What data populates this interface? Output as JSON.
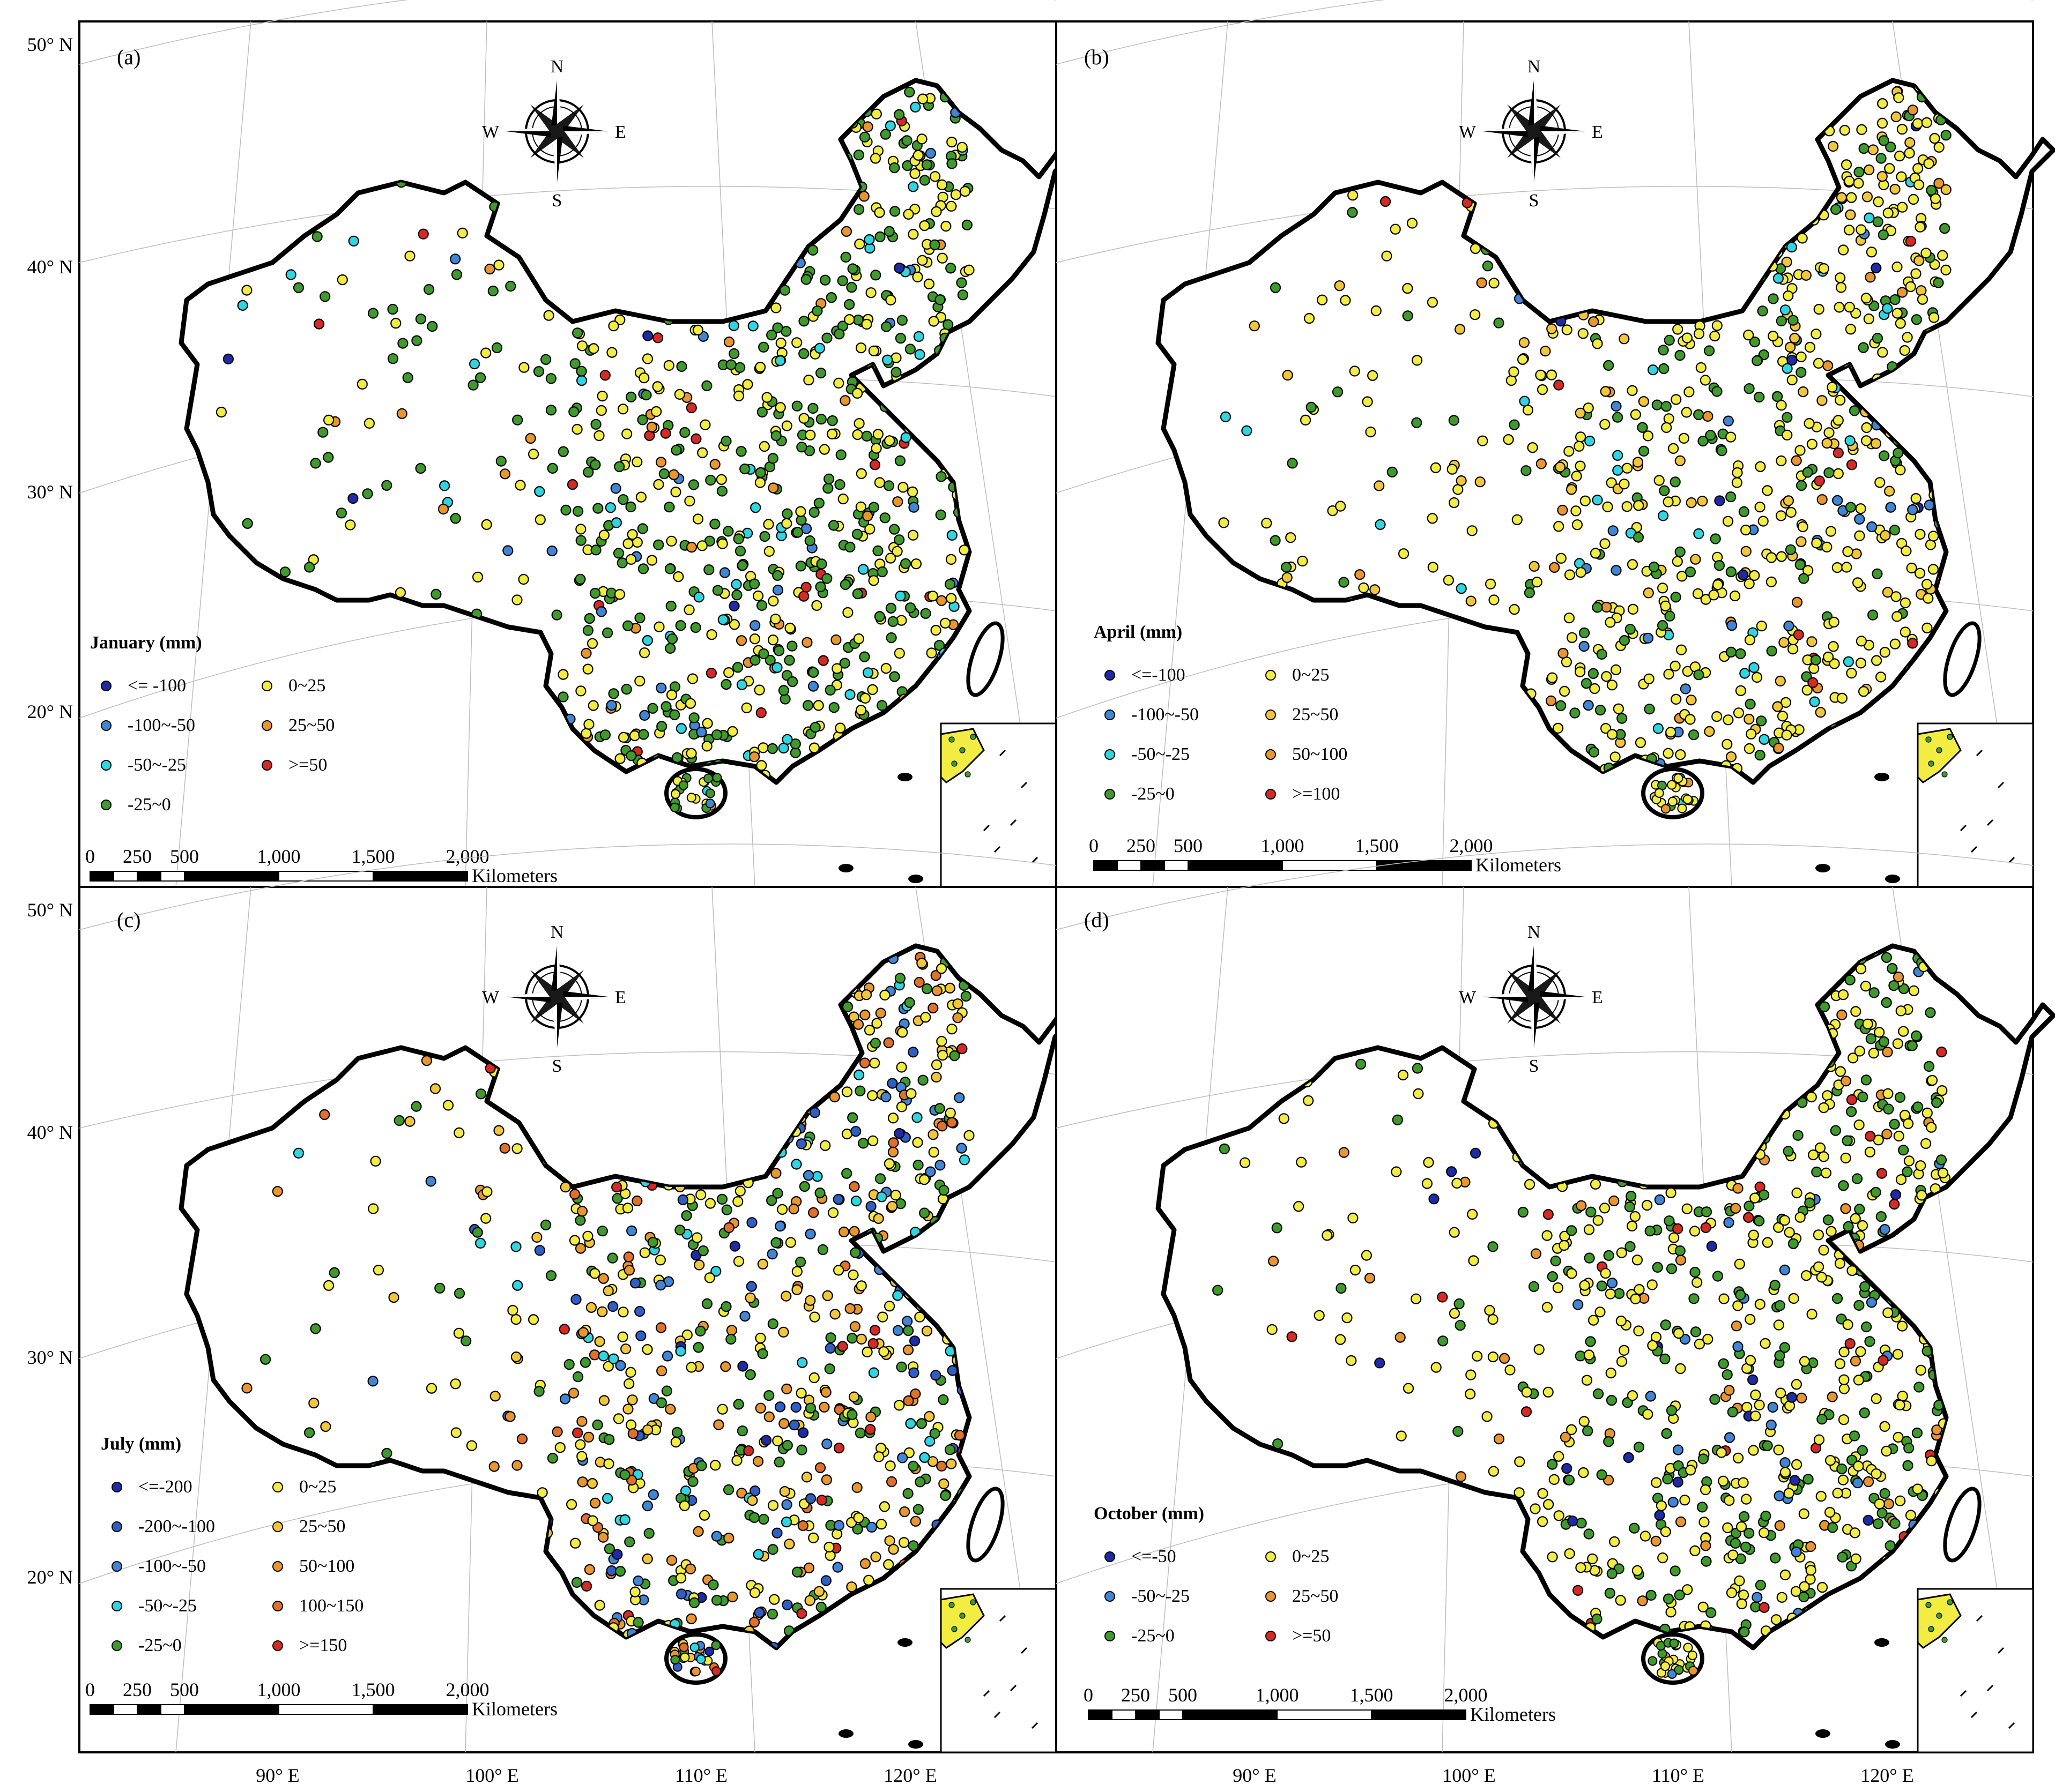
{
  "figure": {
    "lat_labels": [
      "50° N",
      "40° N",
      "30° N",
      "20° N"
    ],
    "lon_labels": [
      "90° E",
      "100° E",
      "110° E",
      "120° E"
    ],
    "compass": {
      "n": "N",
      "e": "E",
      "s": "S",
      "w": "W"
    },
    "scale_bar": {
      "ticks": [
        "0",
        "250",
        "500",
        "1,000",
        "1,500",
        "2,000"
      ],
      "unit": "Kilometers"
    }
  },
  "legend_colors": {
    "dark_blue": "#1f2aa6",
    "blue": "#3f86d4",
    "cyan": "#2fd6e2",
    "green": "#3f9a2c",
    "yellow": "#f2ec43",
    "orange": "#e9962f",
    "dark_orange": "#e0702a",
    "red": "#d62a24"
  },
  "panels": [
    {
      "id": "a",
      "label": "(a)",
      "title": "January (mm)",
      "legend": [
        {
          "text": "<= -100",
          "color": "#1f2aa6"
        },
        {
          "text": "-100~-50",
          "color": "#3f86d4"
        },
        {
          "text": "-50~-25",
          "color": "#2fd6e2"
        },
        {
          "text": "-25~0",
          "color": "#3f9a2c"
        },
        {
          "text": "0~25",
          "color": "#f2ec43"
        },
        {
          "text": "25~50",
          "color": "#e9962f"
        },
        {
          "text": ">=50",
          "color": "#d62a24"
        }
      ]
    },
    {
      "id": "b",
      "label": "(b)",
      "title": "April (mm)",
      "legend": [
        {
          "text": "<=-100",
          "color": "#1f2aa6"
        },
        {
          "text": "-100~-50",
          "color": "#3f86d4"
        },
        {
          "text": "-50~-25",
          "color": "#2fd6e2"
        },
        {
          "text": "-25~0",
          "color": "#3f9a2c"
        },
        {
          "text": "0~25",
          "color": "#f2ec43"
        },
        {
          "text": "25~50",
          "color": "#f2c63a"
        },
        {
          "text": "50~100",
          "color": "#e9962f"
        },
        {
          "text": ">=100",
          "color": "#d62a24"
        }
      ]
    },
    {
      "id": "c",
      "label": "(c)",
      "title": "July (mm)",
      "legend": [
        {
          "text": "<=-200",
          "color": "#1f2aa6"
        },
        {
          "text": "-200~-100",
          "color": "#2f5fc4"
        },
        {
          "text": "-100~-50",
          "color": "#3f86d4"
        },
        {
          "text": "-50~-25",
          "color": "#2fd6e2"
        },
        {
          "text": "-25~0",
          "color": "#3f9a2c"
        },
        {
          "text": "0~25",
          "color": "#f2ec43"
        },
        {
          "text": "25~50",
          "color": "#f2c63a"
        },
        {
          "text": "50~100",
          "color": "#e9962f"
        },
        {
          "text": "100~150",
          "color": "#e0702a"
        },
        {
          "text": ">=150",
          "color": "#d62a24"
        }
      ]
    },
    {
      "id": "d",
      "label": "(d)",
      "title": "October (mm)",
      "legend": [
        {
          "text": "<=-50",
          "color": "#1f2aa6"
        },
        {
          "text": "-50~-25",
          "color": "#3f86d4"
        },
        {
          "text": "-25~0",
          "color": "#3f9a2c"
        },
        {
          "text": "0~25",
          "color": "#f2ec43"
        },
        {
          "text": "25~50",
          "color": "#e9962f"
        },
        {
          "text": ">=50",
          "color": "#d62a24"
        }
      ]
    }
  ]
}
